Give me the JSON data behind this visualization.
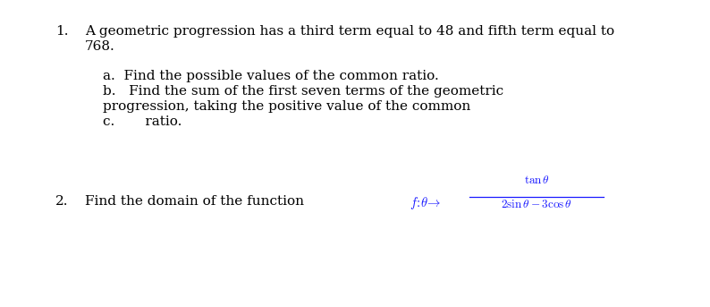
{
  "background_color": "#ffffff",
  "figsize": [
    7.94,
    3.43
  ],
  "dpi": 100,
  "text_color": "#000000",
  "math_color": "#1a1aff",
  "main_font_size": 11.0,
  "math_font_size": 10.5,
  "q1_number": "1.",
  "q1_line1": "A geometric progression has a third term equal to 48 and fifth term equal to",
  "q1_line2": "768.",
  "q1a": "a.  Find the possible values of the common ratio.",
  "q1b_line1": "b.   Find the sum of the first seven terms of the geometric",
  "q1b_line2": "progression, taking the positive value of the common",
  "q1c": "c.       ratio.",
  "q2_number": "2.",
  "q2_prefix": "Find the domain of the function "
}
